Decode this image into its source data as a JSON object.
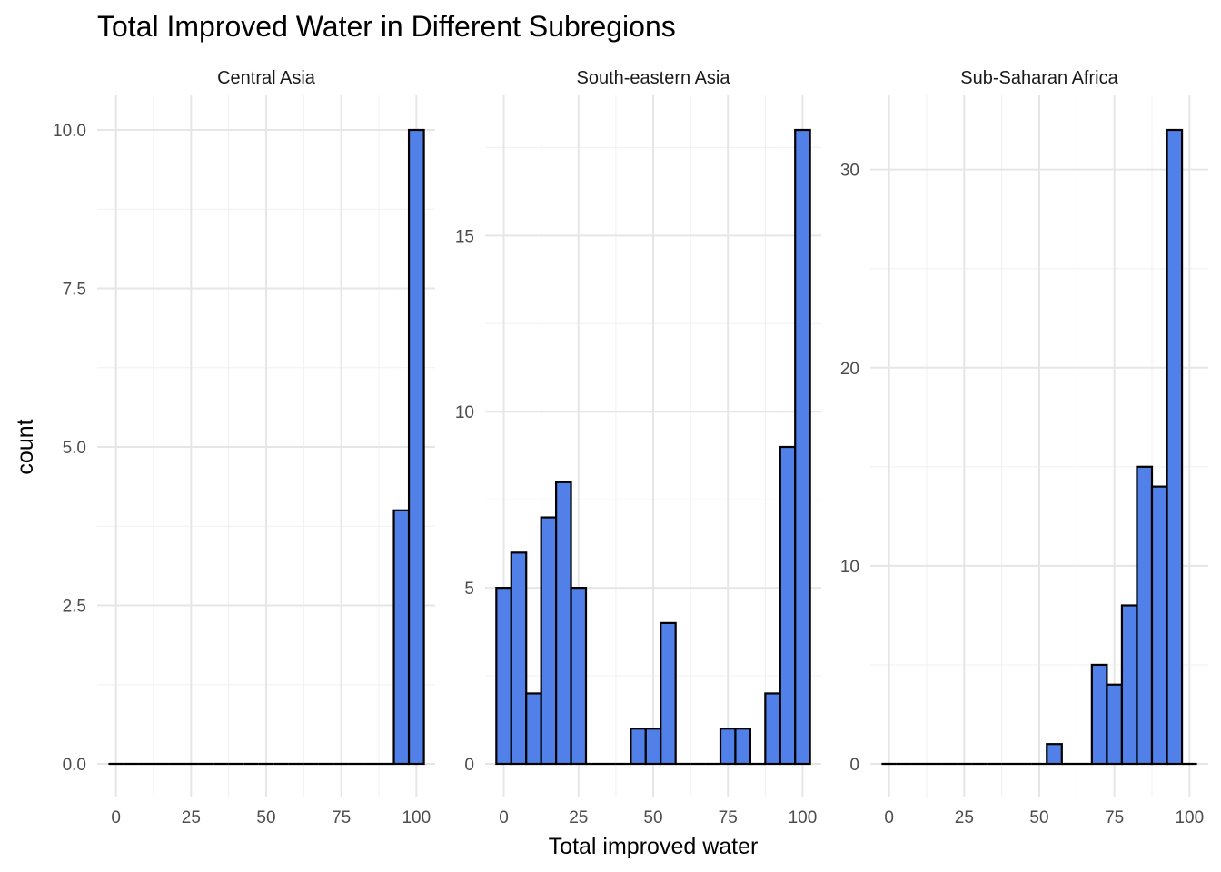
{
  "chart_data": {
    "type": "bar",
    "title": "Total Improved Water in Different Subregions",
    "xlabel": "Total improved water",
    "ylabel": "count",
    "bar_color": "#5080e8",
    "bar_outline": "#000000",
    "grid": true,
    "bin_width": 5,
    "bin_centers": [
      0,
      5,
      10,
      15,
      20,
      25,
      30,
      35,
      40,
      45,
      50,
      55,
      60,
      65,
      70,
      75,
      80,
      85,
      90,
      95,
      100
    ],
    "x_ticks": [
      "0",
      "25",
      "50",
      "75",
      "100"
    ],
    "xlim": [
      -6.25,
      106.25
    ],
    "panels": [
      {
        "name": "Central Asia",
        "ylim": [
          0,
          10
        ],
        "y_ticks": [
          "0.0",
          "2.5",
          "5.0",
          "7.5",
          "10.0"
        ],
        "y_tick_values": [
          0,
          2.5,
          5,
          7.5,
          10
        ],
        "values": [
          0,
          0,
          0,
          0,
          0,
          0,
          0,
          0,
          0,
          0,
          0,
          0,
          0,
          0,
          0,
          0,
          0,
          0,
          0,
          4,
          10
        ]
      },
      {
        "name": "South-eastern Asia",
        "ylim": [
          0,
          18
        ],
        "y_ticks": [
          "0",
          "5",
          "10",
          "15"
        ],
        "y_tick_values": [
          0,
          5,
          10,
          15
        ],
        "values": [
          5,
          6,
          2,
          7,
          8,
          5,
          0,
          0,
          0,
          1,
          1,
          4,
          0,
          0,
          0,
          1,
          1,
          0,
          2,
          9,
          18
        ]
      },
      {
        "name": "Sub-Saharan Africa",
        "ylim": [
          0,
          32
        ],
        "y_ticks": [
          "0",
          "10",
          "20",
          "30"
        ],
        "y_tick_values": [
          0,
          10,
          20,
          30
        ],
        "values": [
          0,
          0,
          0,
          0,
          0,
          0,
          0,
          0,
          0,
          0,
          0,
          1,
          0,
          0,
          5,
          4,
          8,
          15,
          14,
          32,
          0
        ]
      }
    ]
  }
}
